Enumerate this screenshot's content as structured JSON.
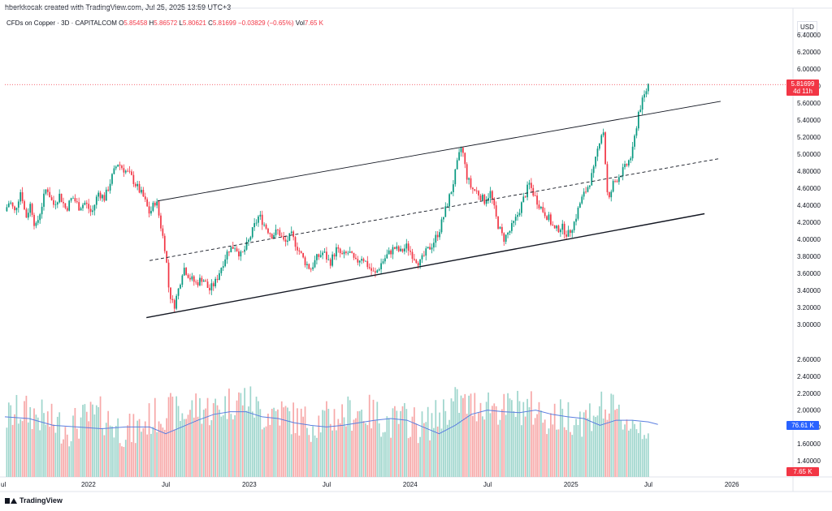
{
  "header": {
    "text": "hberkkocak created with TradingView.com, Jul 25, 2025 13:59 UTC+3"
  },
  "legend": {
    "symbol": "CFDs on Copper · 3D · CAPITALCOM",
    "open_label": "O",
    "open": "5.85458",
    "high_label": "H",
    "high": "5.86572",
    "low_label": "L",
    "low": "5.80621",
    "close_label": "C",
    "close": "5.81699",
    "change": "−0.03829 (−0.65%)",
    "vol_label": "Vol",
    "vol": "7.65 K"
  },
  "price_axis": {
    "currency": "USD"
  },
  "badges": {
    "last_price": "5.81699",
    "countdown": "4d 11h",
    "volume_ma": "76.61 K",
    "volume_last": "7.65 K"
  },
  "footer": {
    "brand": "TradingView"
  },
  "colors": {
    "up": "#089981",
    "down": "#f23645",
    "vol_up": "#9fd6cd",
    "vol_down": "#f7a9a9",
    "ma": "#5b7fe0",
    "grid": "#f0f3fa"
  },
  "chart_data": {
    "type": "candlestick",
    "symbol": "CFDs on Copper",
    "timeframe": "3D",
    "price_ticks": [
      "3.00000",
      "3.20000",
      "3.40000",
      "3.60000",
      "3.80000",
      "4.00000",
      "4.20000",
      "4.40000",
      "4.60000",
      "4.80000",
      "5.00000",
      "5.20000",
      "5.40000",
      "5.60000",
      "5.80000",
      "6.00000",
      "6.20000",
      "6.40000"
    ],
    "volume_ticks": [
      "1.40000",
      "1.60000",
      "1.80000",
      "2.00000",
      "2.20000",
      "2.40000",
      "2.60000"
    ],
    "time_ticks": [
      {
        "label": "ul",
        "x": 0.0
      },
      {
        "label": "2022",
        "x": 0.5
      },
      {
        "label": "Jul",
        "x": 1.0
      },
      {
        "label": "2023",
        "x": 1.5
      },
      {
        "label": "Jul",
        "x": 2.0
      },
      {
        "label": "2024",
        "x": 2.5
      },
      {
        "label": "Jul",
        "x": 3.0
      },
      {
        "label": "2025",
        "x": 3.5
      },
      {
        "label": "Jul",
        "x": 4.0
      },
      {
        "label": "2026",
        "x": 4.5
      }
    ],
    "price_path": [
      [
        0.0,
        4.33
      ],
      [
        0.03,
        4.45
      ],
      [
        0.06,
        4.32
      ],
      [
        0.1,
        4.58
      ],
      [
        0.13,
        4.25
      ],
      [
        0.16,
        4.42
      ],
      [
        0.19,
        4.12
      ],
      [
        0.22,
        4.33
      ],
      [
        0.26,
        4.62
      ],
      [
        0.3,
        4.4
      ],
      [
        0.34,
        4.52
      ],
      [
        0.38,
        4.35
      ],
      [
        0.42,
        4.5
      ],
      [
        0.46,
        4.38
      ],
      [
        0.5,
        4.43
      ],
      [
        0.54,
        4.3
      ],
      [
        0.58,
        4.55
      ],
      [
        0.62,
        4.48
      ],
      [
        0.66,
        4.7
      ],
      [
        0.7,
        4.9
      ],
      [
        0.74,
        4.82
      ],
      [
        0.78,
        4.75
      ],
      [
        0.82,
        4.62
      ],
      [
        0.86,
        4.5
      ],
      [
        0.9,
        4.3
      ],
      [
        0.94,
        4.47
      ],
      [
        0.97,
        4.15
      ],
      [
        1.0,
        3.85
      ],
      [
        1.02,
        3.4
      ],
      [
        1.05,
        3.2
      ],
      [
        1.08,
        3.42
      ],
      [
        1.11,
        3.68
      ],
      [
        1.15,
        3.55
      ],
      [
        1.19,
        3.48
      ],
      [
        1.23,
        3.55
      ],
      [
        1.27,
        3.4
      ],
      [
        1.31,
        3.5
      ],
      [
        1.35,
        3.7
      ],
      [
        1.39,
        3.88
      ],
      [
        1.43,
        3.92
      ],
      [
        1.47,
        3.8
      ],
      [
        1.51,
        3.95
      ],
      [
        1.55,
        4.15
      ],
      [
        1.58,
        4.28
      ],
      [
        1.62,
        4.15
      ],
      [
        1.66,
        4.05
      ],
      [
        1.7,
        4.1
      ],
      [
        1.74,
        3.95
      ],
      [
        1.78,
        4.05
      ],
      [
        1.82,
        3.9
      ],
      [
        1.86,
        3.75
      ],
      [
        1.9,
        3.65
      ],
      [
        1.94,
        3.78
      ],
      [
        1.98,
        3.85
      ],
      [
        2.02,
        3.72
      ],
      [
        2.06,
        3.88
      ],
      [
        2.1,
        3.8
      ],
      [
        2.14,
        3.85
      ],
      [
        2.18,
        3.72
      ],
      [
        2.22,
        3.8
      ],
      [
        2.26,
        3.68
      ],
      [
        2.3,
        3.58
      ],
      [
        2.34,
        3.72
      ],
      [
        2.38,
        3.82
      ],
      [
        2.42,
        3.9
      ],
      [
        2.46,
        3.85
      ],
      [
        2.5,
        3.92
      ],
      [
        2.54,
        3.8
      ],
      [
        2.58,
        3.72
      ],
      [
        2.62,
        3.85
      ],
      [
        2.66,
        3.95
      ],
      [
        2.7,
        4.1
      ],
      [
        2.74,
        4.35
      ],
      [
        2.78,
        4.6
      ],
      [
        2.82,
        4.95
      ],
      [
        2.84,
        5.1
      ],
      [
        2.87,
        4.75
      ],
      [
        2.9,
        4.6
      ],
      [
        2.94,
        4.55
      ],
      [
        2.98,
        4.45
      ],
      [
        3.02,
        4.55
      ],
      [
        3.06,
        4.2
      ],
      [
        3.1,
        4.0
      ],
      [
        3.14,
        4.1
      ],
      [
        3.18,
        4.25
      ],
      [
        3.22,
        4.45
      ],
      [
        3.26,
        4.65
      ],
      [
        3.3,
        4.48
      ],
      [
        3.34,
        4.35
      ],
      [
        3.38,
        4.25
      ],
      [
        3.42,
        4.1
      ],
      [
        3.46,
        4.15
      ],
      [
        3.5,
        4.05
      ],
      [
        3.54,
        4.2
      ],
      [
        3.58,
        4.45
      ],
      [
        3.62,
        4.6
      ],
      [
        3.66,
        4.8
      ],
      [
        3.7,
        5.2
      ],
      [
        3.72,
        5.3
      ],
      [
        3.75,
        4.4
      ],
      [
        3.78,
        4.65
      ],
      [
        3.82,
        4.75
      ],
      [
        3.86,
        4.85
      ],
      [
        3.9,
        5.0
      ],
      [
        3.94,
        5.5
      ],
      [
        3.97,
        5.65
      ],
      [
        4.0,
        5.82
      ]
    ],
    "volume_path": [
      [
        0.0,
        1.85
      ],
      [
        0.1,
        1.95
      ],
      [
        0.2,
        1.9
      ],
      [
        0.3,
        1.8
      ],
      [
        0.4,
        1.75
      ],
      [
        0.5,
        1.85
      ],
      [
        0.6,
        1.9
      ],
      [
        0.7,
        1.75
      ],
      [
        0.8,
        1.7
      ],
      [
        0.9,
        1.85
      ],
      [
        1.0,
        1.95
      ],
      [
        1.1,
        1.9
      ],
      [
        1.2,
        2.0
      ],
      [
        1.3,
        1.95
      ],
      [
        1.4,
        2.05
      ],
      [
        1.5,
        2.1
      ],
      [
        1.6,
        1.9
      ],
      [
        1.7,
        1.95
      ],
      [
        1.8,
        1.85
      ],
      [
        1.9,
        1.8
      ],
      [
        2.0,
        1.85
      ],
      [
        2.1,
        1.9
      ],
      [
        2.2,
        1.95
      ],
      [
        2.3,
        1.9
      ],
      [
        2.4,
        1.8
      ],
      [
        2.5,
        1.85
      ],
      [
        2.6,
        1.75
      ],
      [
        2.7,
        1.9
      ],
      [
        2.8,
        2.05
      ],
      [
        2.9,
        2.0
      ],
      [
        3.0,
        2.05
      ],
      [
        3.1,
        1.95
      ],
      [
        3.2,
        2.0
      ],
      [
        3.3,
        1.95
      ],
      [
        3.4,
        1.85
      ],
      [
        3.5,
        1.9
      ],
      [
        3.6,
        1.85
      ],
      [
        3.7,
        2.0
      ],
      [
        3.8,
        1.9
      ],
      [
        3.9,
        1.8
      ],
      [
        4.0,
        1.75
      ]
    ],
    "volume_ma_path": [
      [
        0.0,
        1.92
      ],
      [
        0.15,
        1.9
      ],
      [
        0.3,
        1.82
      ],
      [
        0.45,
        1.8
      ],
      [
        0.6,
        1.78
      ],
      [
        0.75,
        1.8
      ],
      [
        0.9,
        1.8
      ],
      [
        1.0,
        1.72
      ],
      [
        1.1,
        1.8
      ],
      [
        1.2,
        1.88
      ],
      [
        1.3,
        1.95
      ],
      [
        1.4,
        1.98
      ],
      [
        1.5,
        1.98
      ],
      [
        1.6,
        1.92
      ],
      [
        1.7,
        1.9
      ],
      [
        1.8,
        1.85
      ],
      [
        1.9,
        1.82
      ],
      [
        2.0,
        1.8
      ],
      [
        2.1,
        1.82
      ],
      [
        2.2,
        1.85
      ],
      [
        2.3,
        1.88
      ],
      [
        2.4,
        1.9
      ],
      [
        2.5,
        1.88
      ],
      [
        2.6,
        1.8
      ],
      [
        2.7,
        1.72
      ],
      [
        2.8,
        1.82
      ],
      [
        2.9,
        1.95
      ],
      [
        3.0,
        2.0
      ],
      [
        3.1,
        1.98
      ],
      [
        3.2,
        1.97
      ],
      [
        3.3,
        2.0
      ],
      [
        3.4,
        1.95
      ],
      [
        3.5,
        1.92
      ],
      [
        3.6,
        1.9
      ],
      [
        3.7,
        1.82
      ],
      [
        3.8,
        1.88
      ],
      [
        3.9,
        1.88
      ],
      [
        4.0,
        1.86
      ],
      [
        4.06,
        1.83
      ]
    ],
    "channel": {
      "upper": [
        [
          0.95,
          4.45
        ],
        [
          4.45,
          5.62
        ]
      ],
      "middle": [
        [
          0.9,
          3.75
        ],
        [
          4.45,
          4.95
        ]
      ],
      "lower": [
        [
          0.88,
          3.08
        ],
        [
          4.35,
          4.3
        ]
      ]
    },
    "last_price": 5.81699
  }
}
